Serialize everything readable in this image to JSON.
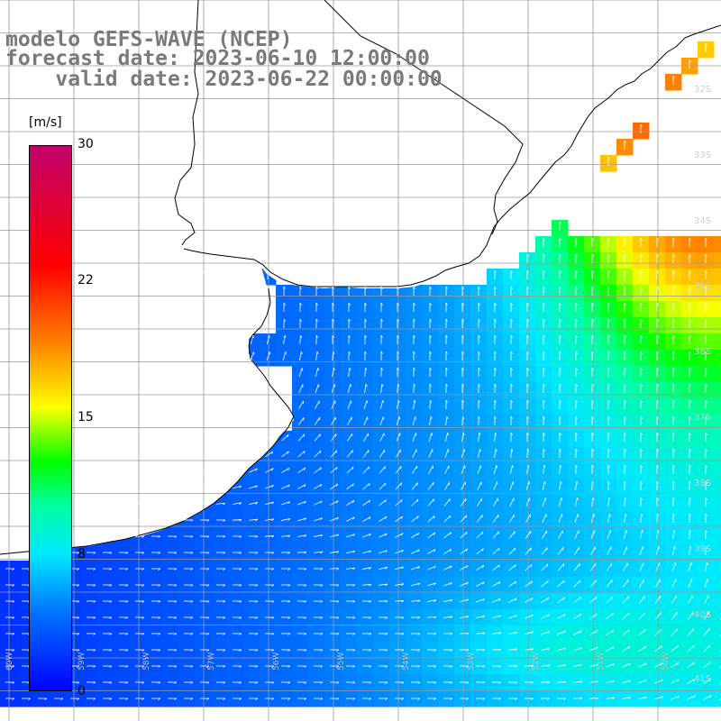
{
  "title": {
    "line1": "modelo GEFS-WAVE (NCEP)",
    "line2": "forecast date: 2023-06-10 12:00:00",
    "line3": "    valid date: 2023-06-22 00:00:00"
  },
  "colorbar": {
    "unit": "[m/s]",
    "ticks": [
      "30",
      "22",
      "15",
      "8",
      "0"
    ],
    "tick_values": [
      30,
      22,
      15,
      8,
      0
    ],
    "range": [
      0,
      30
    ],
    "colors": [
      "#0000ff",
      "#0070ff",
      "#00e8ff",
      "#00ffa0",
      "#00ff00",
      "#ffff00",
      "#ff8000",
      "#ff0000",
      "#c0006a"
    ]
  },
  "map": {
    "lat_labels": [
      "32S",
      "33S",
      "34S",
      "35S",
      "36S",
      "37S",
      "38S",
      "39S",
      "40S",
      "41S"
    ],
    "lon_labels": [
      "60W",
      "59W",
      "58W",
      "57W",
      "56W",
      "55W",
      "54W",
      "53W",
      "52W",
      "51W",
      "50W"
    ],
    "land_color": "#ffffff",
    "grid_color": "#9a9a9a",
    "coast_color": "#000000",
    "arrow_color": "#ffffff"
  }
}
